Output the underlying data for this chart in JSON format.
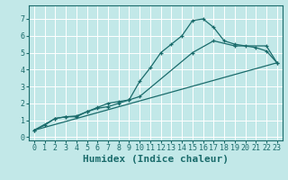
{
  "title": "",
  "xlabel": "Humidex (Indice chaleur)",
  "ylabel": "",
  "bg_color": "#c2e8e8",
  "line_color": "#1a6b6b",
  "grid_color": "#ffffff",
  "xlim": [
    -0.5,
    23.5
  ],
  "ylim": [
    -0.2,
    7.8
  ],
  "xticks": [
    0,
    1,
    2,
    3,
    4,
    5,
    6,
    7,
    8,
    9,
    10,
    11,
    12,
    13,
    14,
    15,
    16,
    17,
    18,
    19,
    20,
    21,
    22,
    23
  ],
  "yticks": [
    0,
    1,
    2,
    3,
    4,
    5,
    6,
    7
  ],
  "line1_x": [
    0,
    1,
    2,
    3,
    4,
    5,
    6,
    7,
    8,
    9,
    10,
    11,
    12,
    13,
    14,
    15,
    16,
    17,
    18,
    19,
    20,
    21,
    22,
    23
  ],
  "line1_y": [
    0.4,
    0.7,
    1.1,
    1.2,
    1.2,
    1.5,
    1.7,
    1.8,
    2.0,
    2.2,
    3.3,
    4.1,
    5.0,
    5.5,
    6.0,
    6.9,
    7.0,
    6.5,
    5.7,
    5.5,
    5.4,
    5.3,
    5.1,
    4.4
  ],
  "line2_x": [
    0,
    2,
    3,
    4,
    5,
    6,
    7,
    8,
    9,
    10,
    15,
    17,
    19,
    22,
    23
  ],
  "line2_y": [
    0.4,
    1.1,
    1.2,
    1.25,
    1.5,
    1.75,
    2.0,
    2.1,
    2.2,
    2.4,
    5.0,
    5.7,
    5.4,
    5.4,
    4.4
  ],
  "line3_x": [
    0,
    23
  ],
  "line3_y": [
    0.4,
    4.4
  ],
  "xlabel_fontsize": 8,
  "tick_fontsize": 6
}
